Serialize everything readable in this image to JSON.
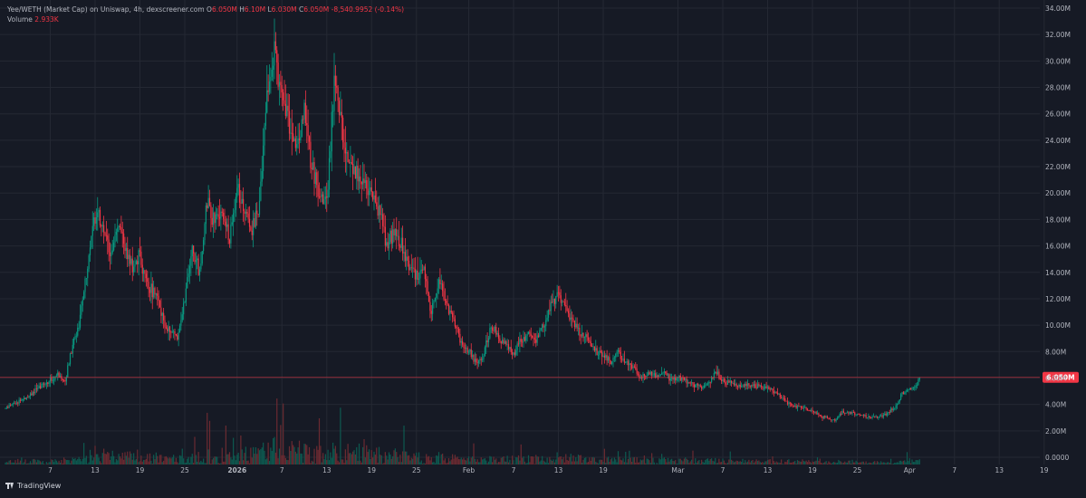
{
  "header": {
    "title": "Yee/WETH (Market Cap) on Uniswap, 4h, dexscreener.com",
    "o_label": "O",
    "o_value": "6.050M",
    "h_label": "H",
    "h_value": "6.10M",
    "l_label": "L",
    "l_value": "6.030M",
    "c_label": "C",
    "c_value": "6.050M",
    "change": "-8,540.9952 (-0.14%)",
    "volume_label": "Volume",
    "volume_value": "2.933K"
  },
  "brand": {
    "label": "TradingView"
  },
  "colors": {
    "background": "#161a25",
    "grid": "#242833",
    "axis_text": "#b2b5be",
    "up": "#089981",
    "down": "#f23645",
    "up_volume": "#0d5a50",
    "down_volume": "#6b2a31",
    "last_price_line": "#f23645"
  },
  "chart_data": {
    "type": "candlestick",
    "price_axis": {
      "labels": [
        "34.00M",
        "32.00M",
        "30.00M",
        "28.00M",
        "26.00M",
        "24.00M",
        "22.00M",
        "20.00M",
        "18.00M",
        "16.00M",
        "14.00M",
        "12.00M",
        "10.00M",
        "8.00M",
        "6.00M",
        "4.00M",
        "2.00M",
        "0.0000"
      ],
      "values": [
        34,
        32,
        30,
        28,
        26,
        24,
        22,
        20,
        18,
        16,
        14,
        12,
        10,
        8,
        6,
        4,
        2,
        0
      ],
      "ylim": [
        0,
        34
      ],
      "unit": "M"
    },
    "last_price": {
      "label": "6.050M",
      "value": 6.05
    },
    "time_axis": {
      "labels": [
        "7",
        "13",
        "19",
        "25",
        "2026",
        "7",
        "13",
        "19",
        "25",
        "Feb",
        "7",
        "13",
        "19",
        "Mar",
        "7",
        "13",
        "19",
        "25",
        "Apr",
        "7",
        "13",
        "19"
      ],
      "day_index": [
        6,
        12,
        18,
        24,
        31,
        37,
        43,
        49,
        55,
        62,
        68,
        74,
        80,
        90,
        96,
        102,
        108,
        114,
        121,
        127,
        133,
        139
      ],
      "bold": [
        "2026"
      ]
    },
    "candles_per_day": 6,
    "day_range": [
      0,
      127
    ],
    "market_cap_path_M": [
      [
        0,
        3.7
      ],
      [
        3,
        4.6
      ],
      [
        5,
        5.5
      ],
      [
        7,
        6.2
      ],
      [
        8,
        5.9
      ],
      [
        9,
        8.5
      ],
      [
        10,
        10.5
      ],
      [
        11,
        14.5
      ],
      [
        12,
        18.5
      ],
      [
        13,
        17.5
      ],
      [
        14,
        15.5
      ],
      [
        15,
        17.5
      ],
      [
        16,
        15.8
      ],
      [
        17,
        14.2
      ],
      [
        18,
        15.3
      ],
      [
        19,
        13.0
      ],
      [
        20,
        12.5
      ],
      [
        21,
        10.5
      ],
      [
        22,
        9.5
      ],
      [
        23,
        9.2
      ],
      [
        24,
        12.0
      ],
      [
        25,
        15.5
      ],
      [
        26,
        14.0
      ],
      [
        27,
        19.2
      ],
      [
        28,
        18.0
      ],
      [
        29,
        18.5
      ],
      [
        30,
        16.5
      ],
      [
        31,
        20.3
      ],
      [
        32,
        19.0
      ],
      [
        33,
        17.2
      ],
      [
        34,
        19.0
      ],
      [
        35,
        27.5
      ],
      [
        36,
        30.5
      ],
      [
        37,
        27.0
      ],
      [
        38,
        25.5
      ],
      [
        39,
        23.5
      ],
      [
        40,
        26.0
      ],
      [
        41,
        22.0
      ],
      [
        42,
        20.0
      ],
      [
        43,
        19.0
      ],
      [
        44,
        28.5
      ],
      [
        45,
        25.0
      ],
      [
        46,
        22.0
      ],
      [
        47,
        21.5
      ],
      [
        48,
        21.0
      ],
      [
        49,
        20.0
      ],
      [
        50,
        18.5
      ],
      [
        51,
        16.0
      ],
      [
        52,
        17.0
      ],
      [
        53,
        16.2
      ],
      [
        54,
        14.5
      ],
      [
        55,
        13.8
      ],
      [
        56,
        14.0
      ],
      [
        57,
        11.0
      ],
      [
        58,
        13.5
      ],
      [
        59,
        11.5
      ],
      [
        60,
        10.5
      ],
      [
        61,
        8.5
      ],
      [
        62,
        8.0
      ],
      [
        63,
        7.2
      ],
      [
        64,
        7.8
      ],
      [
        65,
        10.0
      ],
      [
        66,
        9.0
      ],
      [
        67,
        8.5
      ],
      [
        68,
        7.8
      ],
      [
        69,
        8.8
      ],
      [
        70,
        9.3
      ],
      [
        71,
        8.8
      ],
      [
        72,
        10.0
      ],
      [
        73,
        11.5
      ],
      [
        74,
        12.3
      ],
      [
        75,
        11.0
      ],
      [
        76,
        10.0
      ],
      [
        77,
        9.5
      ],
      [
        78,
        8.8
      ],
      [
        79,
        8.0
      ],
      [
        80,
        7.8
      ],
      [
        81,
        7.2
      ],
      [
        82,
        8.0
      ],
      [
        83,
        7.2
      ],
      [
        84,
        6.8
      ],
      [
        85,
        6.0
      ],
      [
        86,
        6.4
      ],
      [
        87,
        6.2
      ],
      [
        88,
        6.5
      ],
      [
        89,
        5.9
      ],
      [
        90,
        6.1
      ],
      [
        91,
        5.8
      ],
      [
        92,
        5.5
      ],
      [
        93,
        5.3
      ],
      [
        94,
        5.6
      ],
      [
        95,
        6.5
      ],
      [
        96,
        5.8
      ],
      [
        97,
        5.6
      ],
      [
        98,
        5.5
      ],
      [
        99,
        5.4
      ],
      [
        100,
        5.5
      ],
      [
        101,
        5.3
      ],
      [
        102,
        5.2
      ],
      [
        103,
        4.9
      ],
      [
        104,
        4.5
      ],
      [
        105,
        4.0
      ],
      [
        106,
        3.8
      ],
      [
        107,
        3.7
      ],
      [
        108,
        3.5
      ],
      [
        109,
        3.1
      ],
      [
        110,
        3.0
      ],
      [
        111,
        2.8
      ],
      [
        112,
        3.4
      ],
      [
        113,
        3.4
      ],
      [
        114,
        3.2
      ],
      [
        115,
        3.1
      ],
      [
        116,
        3.0
      ],
      [
        117,
        3.1
      ],
      [
        118,
        3.3
      ],
      [
        119,
        3.8
      ],
      [
        120,
        4.8
      ],
      [
        121,
        5.2
      ],
      [
        122,
        5.6
      ],
      [
        122.5,
        6.05
      ]
    ]
  }
}
